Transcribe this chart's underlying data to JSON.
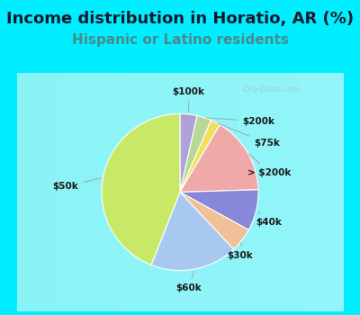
{
  "title": "Income distribution in Horatio, AR (%)",
  "subtitle": "Hispanic or Latino residents",
  "labels": [
    "$100k",
    "$200k",
    "$75k",
    "> $200k",
    "$40k",
    "$30k",
    "$60k",
    "$50k"
  ],
  "sizes": [
    3.5,
    3.0,
    2.0,
    16.0,
    8.5,
    5.0,
    18.0,
    44.0
  ],
  "colors": [
    "#b0a0d8",
    "#b8d898",
    "#f0e060",
    "#f0a8a8",
    "#8888d8",
    "#f0c098",
    "#a8c8f0",
    "#c8e868"
  ],
  "bg_color_outer": "#00eeff",
  "bg_color_inner_tl": "#d8f0e0",
  "bg_color_inner_br": "#f0f8f8",
  "title_color": "#1a1a2e",
  "subtitle_color": "#4a8a8a",
  "title_fontsize": 13,
  "subtitle_fontsize": 11,
  "startangle": 90,
  "label_arrows": {
    "$100k": {
      "xt": 0.1,
      "yt": 0.88
    },
    "$200k": {
      "xt": 0.8,
      "yt": 0.68
    },
    "$75k": {
      "xt": 0.88,
      "yt": 0.5
    },
    "> $200k": {
      "xt": 0.92,
      "yt": 0.32
    },
    "$40k": {
      "xt": 0.85,
      "yt": -0.1
    },
    "$30k": {
      "xt": 0.7,
      "yt": -0.42
    },
    "$60k": {
      "xt": 0.2,
      "yt": -0.9
    },
    "$50k": {
      "xt": -0.9,
      "yt": 0.05
    }
  }
}
